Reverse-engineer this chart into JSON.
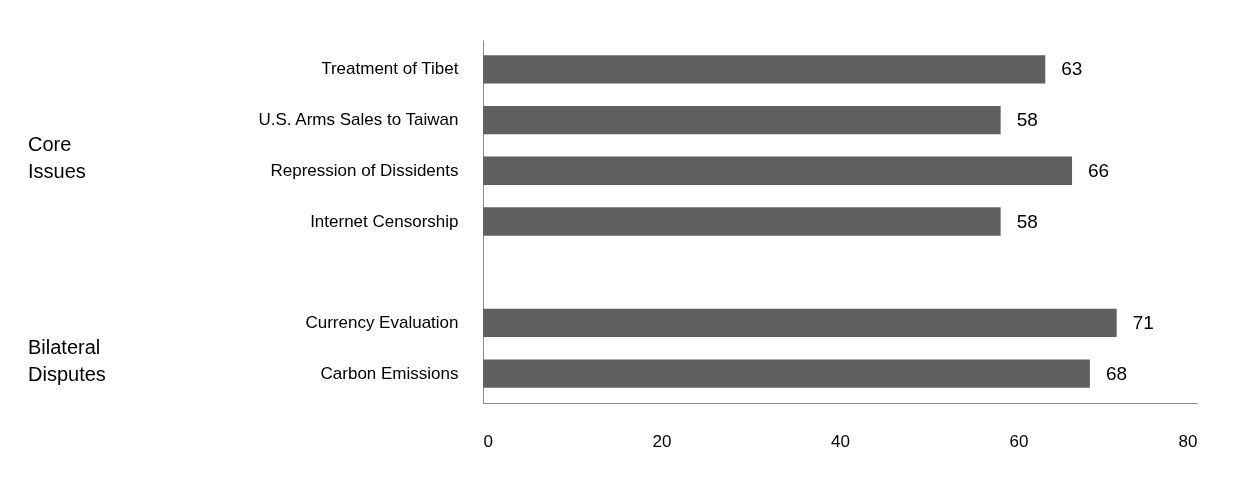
{
  "chart_data": {
    "type": "bar",
    "orientation": "horizontal",
    "categories": [
      "Treatment of Tibet",
      "U.S. Arms Sales to Taiwan",
      "Repression of Dissidents",
      "Internet Censorship",
      null,
      "Currency Evaluation",
      "Carbon Emissions"
    ],
    "values": [
      63,
      58,
      66,
      58,
      null,
      71,
      68
    ],
    "color": "#606060",
    "xlim": [
      0,
      80
    ],
    "xticks": [
      0,
      20,
      40,
      60,
      80
    ],
    "data_labels": true,
    "annotations": [
      "Core Issues",
      "Bilateral Disputes"
    ]
  }
}
